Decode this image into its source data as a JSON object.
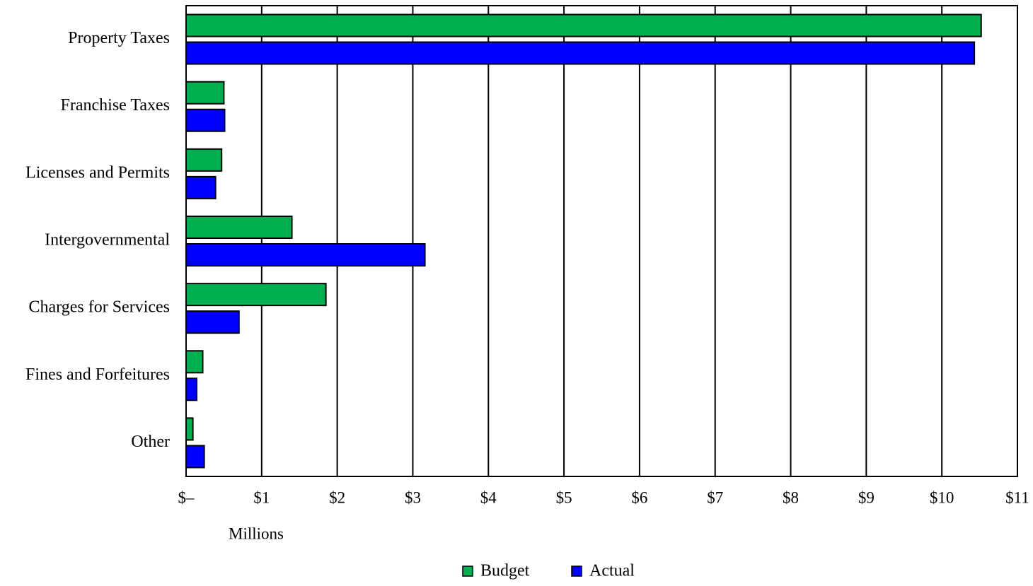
{
  "chart_data": {
    "type": "bar",
    "orientation": "horizontal",
    "categories": [
      "Property Taxes",
      "Franchise Taxes",
      "Licenses and Permits",
      "Intergovernmental",
      "Charges for Services",
      "Fines and Forfeitures",
      "Other"
    ],
    "series": [
      {
        "name": "Budget",
        "color": "#00b050",
        "values": [
          10.52,
          0.5,
          0.47,
          1.4,
          1.85,
          0.22,
          0.09
        ]
      },
      {
        "name": "Actual",
        "color": "#0000ff",
        "values": [
          10.43,
          0.51,
          0.39,
          3.16,
          0.7,
          0.14,
          0.24
        ]
      }
    ],
    "x_tick_labels": [
      "$–",
      "$1",
      "$2",
      "$3",
      "$4",
      "$5",
      "$6",
      "$7",
      "$8",
      "$9",
      "$10",
      "$11"
    ],
    "xlabel": "Millions",
    "ylabel": "",
    "title": "",
    "xlim": [
      0,
      11
    ],
    "grid": "vertical",
    "legend_position": "bottom"
  }
}
